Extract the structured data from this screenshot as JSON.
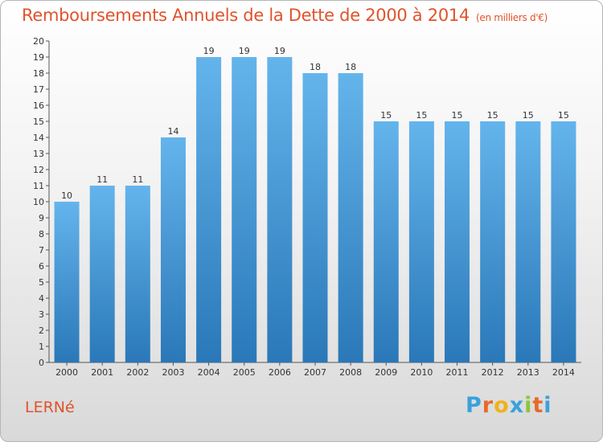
{
  "title": "Remboursements Annuels de la Dette de 2000 à 2014",
  "unit": "(en milliers d'€)",
  "place": "LERNé",
  "logo": {
    "letters": [
      "P",
      "r",
      "o",
      "x",
      "i",
      "t",
      "i"
    ],
    "colors": [
      "#3aa1dc",
      "#e8692a",
      "#f0b21a",
      "#3aa1dc",
      "#8cc63f",
      "#e8692a",
      "#3aa1dc"
    ]
  },
  "colors": {
    "bar_light": "#64b4ec",
    "bar_dark": "#2a78b8",
    "title": "#e0532c"
  },
  "chart_data": {
    "type": "bar",
    "title": "Remboursements Annuels de la Dette de 2000 à 2014",
    "categories": [
      "2000",
      "2001",
      "2002",
      "2003",
      "2004",
      "2005",
      "2006",
      "2007",
      "2008",
      "2009",
      "2010",
      "2011",
      "2012",
      "2013",
      "2014"
    ],
    "values": [
      10,
      11,
      11,
      14,
      19,
      19,
      19,
      18,
      18,
      15,
      15,
      15,
      15,
      15,
      15
    ],
    "ylim": [
      0,
      20
    ],
    "yticks": [
      0,
      1,
      2,
      3,
      4,
      5,
      6,
      7,
      8,
      9,
      10,
      11,
      12,
      13,
      14,
      15,
      16,
      17,
      18,
      19,
      20
    ],
    "xlabel": "",
    "ylabel": "",
    "grid": false,
    "data_labels": true
  }
}
